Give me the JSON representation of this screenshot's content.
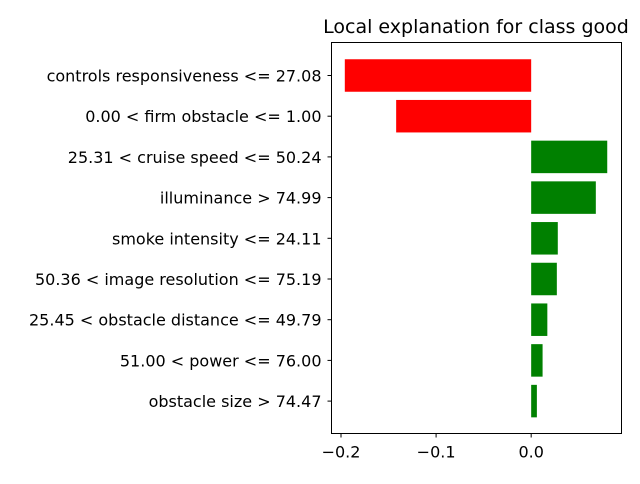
{
  "chart_data": {
    "type": "bar",
    "orientation": "horizontal",
    "title": "Local explanation for class good",
    "xlabel": "",
    "ylabel": "",
    "categories": [
      "controls responsiveness <= 27.08",
      "0.00 < firm obstacle <= 1.00",
      "25.31 < cruise speed <= 50.24",
      "illuminance > 74.99",
      "smoke intensity <= 24.11",
      "50.36 < image resolution <= 75.19",
      "25.45 < obstacle distance <= 49.79",
      "51.00 < power <= 76.00",
      "obstacle size > 74.47"
    ],
    "values": [
      -0.196,
      -0.142,
      0.08,
      0.068,
      0.028,
      0.027,
      0.017,
      0.012,
      0.006
    ],
    "xlim": [
      -0.21,
      0.095
    ],
    "xticks": [
      -0.2,
      -0.1,
      0.0
    ],
    "xtick_labels": [
      "−0.2",
      "−0.1",
      "0.0"
    ],
    "grid": false,
    "colors": {
      "negative": "#ff0000",
      "positive": "#008000",
      "axis": "#000000"
    }
  }
}
